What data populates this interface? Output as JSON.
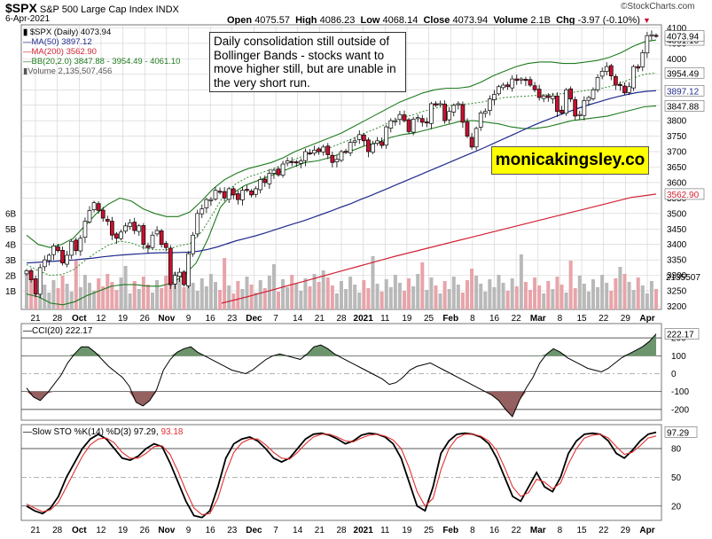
{
  "header": {
    "symbol": "$SPX",
    "name": "S&P 500 Large Cap Index",
    "exchange": "INDX",
    "date": "6-Apr-2021",
    "open_label": "Open",
    "open": "4075.57",
    "high_label": "High",
    "high": "4086.23",
    "low_label": "Low",
    "low": "4068.14",
    "close_label": "Close",
    "close": "4073.94",
    "volume_label": "Volume",
    "volume": "2.1B",
    "chg_label": "Chg",
    "chg": "-3.97 (-0.10%)",
    "source": "©StockCharts.com"
  },
  "legend": {
    "price": "$SPX (Daily) 4073.94",
    "ma50": "MA(50) 3897.12",
    "ma200": "MA(200) 3562.90",
    "bb": "BB(20,2.0) 3847.88 - 3954.49 - 4061.10",
    "volume": "Volume 2,135,507,456",
    "cci": "CCI(20) 222.17",
    "sto_main": "Slow STO %K(14) %D(3) 97.29,",
    "sto_d": "93.18"
  },
  "annotation": "Daily consolidation still outside of Bollinger Bands - stocks want to move higher still, but are unable in the very short run.",
  "watermark": "monicakingsley.co",
  "colors": {
    "up": "#ffffff",
    "down": "#c8102e",
    "candle_outline": "#000000",
    "ma50": "#1f2a8c",
    "ma200": "#d12233",
    "bb": "#1e7a1e",
    "bb_mid": "#2e8b2e",
    "volume_up": "#b9b9b9",
    "volume_down": "#e8a4aa",
    "cci_fill": "#5d8a5d",
    "cci_neg_fill": "#8a4f4f",
    "sto_k": "#000000",
    "sto_d": "#e03030",
    "grid": "#d0d0d0",
    "watermark_bg": "#ffff00"
  },
  "chart_data": [
    {
      "type": "candlestick",
      "title": "$SPX (Daily)",
      "x_labels": [
        "21",
        "28",
        "Oct",
        "12",
        "19",
        "26",
        "Nov",
        "9",
        "16",
        "23",
        "Dec",
        "7",
        "14",
        "21",
        "28",
        "2021",
        "11",
        "19",
        "25",
        "Feb",
        "8",
        "16",
        "22",
        "Mar",
        "8",
        "15",
        "22",
        "29",
        "Apr"
      ],
      "y_ticks": [
        3200,
        3250,
        3300,
        3350,
        3400,
        3450,
        3500,
        3550,
        3600,
        3650,
        3700,
        3750,
        3800,
        3850,
        3900,
        3950,
        4000,
        4050,
        4100
      ],
      "ylim": [
        3190,
        4110
      ],
      "volume_ticks": [
        "1B",
        "2B",
        "3B",
        "4B",
        "5B",
        "6B"
      ],
      "closes": [
        3315,
        3285,
        3240,
        3325,
        3350,
        3365,
        3395,
        3380,
        3340,
        3365,
        3410,
        3380,
        3420,
        3475,
        3510,
        3535,
        3510,
        3485,
        3475,
        3430,
        3420,
        3440,
        3460,
        3470,
        3445,
        3460,
        3400,
        3390,
        3430,
        3445,
        3400,
        3390,
        3270,
        3300,
        3310,
        3270,
        3370,
        3430,
        3500,
        3515,
        3545,
        3545,
        3575,
        3570,
        3550,
        3580,
        3560,
        3545,
        3575,
        3575,
        3560,
        3580,
        3610,
        3600,
        3630,
        3640,
        3625,
        3660,
        3670,
        3665,
        3665,
        3670,
        3700,
        3695,
        3705,
        3700,
        3715,
        3690,
        3665,
        3675,
        3700,
        3700,
        3730,
        3735,
        3755,
        3735,
        3700,
        3725,
        3735,
        3720,
        3780,
        3800,
        3800,
        3820,
        3800,
        3765,
        3805,
        3810,
        3795,
        3795,
        3855,
        3850,
        3855,
        3800,
        3830,
        3850,
        3855,
        3795,
        3750,
        3715,
        3775,
        3825,
        3830,
        3870,
        3885,
        3910,
        3915,
        3910,
        3935,
        3930,
        3935,
        3930,
        3915,
        3900,
        3875,
        3880,
        3875,
        3880,
        3830,
        3825,
        3900,
        3870,
        3815,
        3820,
        3865,
        3875,
        3900,
        3940,
        3960,
        3975,
        3945,
        3915,
        3915,
        3890,
        3910,
        3975,
        3970,
        4020,
        4075,
        4078,
        4074
      ],
      "ma50": [
        3340,
        3342,
        3344,
        3346,
        3348,
        3350,
        3353,
        3356,
        3360,
        3363,
        3366,
        3368,
        3370,
        3372,
        3373,
        3373,
        3374,
        3375,
        3378,
        3384,
        3392,
        3402,
        3412,
        3420,
        3428,
        3437,
        3447,
        3457,
        3467,
        3476,
        3487,
        3498,
        3509,
        3521,
        3532,
        3545,
        3557,
        3570,
        3583,
        3596,
        3609,
        3622,
        3635,
        3648,
        3661,
        3674,
        3687,
        3700,
        3713,
        3727,
        3741,
        3755,
        3769,
        3783,
        3796,
        3808,
        3820,
        3831,
        3842,
        3852,
        3861,
        3870,
        3878,
        3885,
        3891,
        3895,
        3897
      ],
      "ma200": [
        3210,
        3220,
        3230,
        3241,
        3252,
        3263,
        3274,
        3285,
        3296,
        3307,
        3318,
        3329,
        3340,
        3351,
        3362,
        3372,
        3382,
        3392,
        3402,
        3412,
        3422,
        3432,
        3442,
        3452,
        3462,
        3472,
        3482,
        3492,
        3502,
        3512,
        3522,
        3532,
        3542,
        3552,
        3557,
        3563
      ],
      "bb_upper": [
        3430,
        3400,
        3390,
        3400,
        3420,
        3460,
        3500,
        3530,
        3550,
        3540,
        3515,
        3500,
        3490,
        3490,
        3505,
        3540,
        3580,
        3610,
        3630,
        3645,
        3655,
        3665,
        3680,
        3700,
        3715,
        3730,
        3745,
        3760,
        3780,
        3800,
        3820,
        3840,
        3860,
        3875,
        3890,
        3900,
        3905,
        3905,
        3910,
        3925,
        3945,
        3960,
        3975,
        3985,
        3990,
        3990,
        3985,
        3985,
        3990,
        3995,
        4005,
        4020,
        4040,
        4055,
        4061
      ],
      "bb_lower": [
        3240,
        3230,
        3210,
        3205,
        3215,
        3235,
        3250,
        3265,
        3270,
        3270,
        3265,
        3265,
        3275,
        3300,
        3340,
        3420,
        3520,
        3565,
        3590,
        3605,
        3620,
        3635,
        3650,
        3665,
        3670,
        3680,
        3695,
        3705,
        3720,
        3730,
        3745,
        3755,
        3760,
        3770,
        3780,
        3790,
        3800,
        3800,
        3795,
        3790,
        3780,
        3775,
        3775,
        3780,
        3790,
        3800,
        3805,
        3810,
        3815,
        3825,
        3835,
        3845,
        3848
      ],
      "ma50_last": 3897.12,
      "ma200_last": 3562.9,
      "bb_upper_last": 4061.1,
      "bb_mid_last": 3954.49,
      "bb_lower_last": 3847.88,
      "last": 4073.94,
      "volume_last": 2135507
    },
    {
      "type": "line",
      "title": "CCI(20)",
      "y_ticks": [
        -200,
        -100,
        0,
        100,
        200
      ],
      "ylim": [
        -260,
        280
      ],
      "values": [
        -80,
        -130,
        -150,
        -110,
        -60,
        -10,
        60,
        110,
        150,
        150,
        120,
        80,
        40,
        10,
        -20,
        -70,
        -160,
        -180,
        -150,
        -90,
        20,
        80,
        120,
        140,
        150,
        120,
        100,
        80,
        60,
        40,
        20,
        10,
        0,
        20,
        50,
        80,
        100,
        110,
        100,
        90,
        80,
        110,
        150,
        160,
        140,
        110,
        90,
        70,
        50,
        30,
        10,
        -10,
        -30,
        -60,
        -50,
        -20,
        20,
        40,
        50,
        60,
        40,
        20,
        0,
        -20,
        -40,
        -60,
        -80,
        -100,
        -120,
        -150,
        -200,
        -240,
        -150,
        -80,
        -20,
        60,
        110,
        140,
        120,
        90,
        70,
        50,
        30,
        20,
        10,
        30,
        60,
        90,
        110,
        130,
        150,
        180,
        222
      ]
    },
    {
      "type": "line",
      "title": "Slow STO %K(14) %D(3)",
      "y_ticks": [
        20,
        50,
        80
      ],
      "ylim": [
        5,
        105
      ],
      "series": [
        {
          "name": "%K",
          "values": [
            20,
            15,
            12,
            18,
            30,
            50,
            65,
            80,
            90,
            95,
            90,
            80,
            70,
            68,
            72,
            80,
            85,
            82,
            65,
            45,
            25,
            10,
            8,
            15,
            40,
            70,
            85,
            90,
            92,
            88,
            80,
            70,
            66,
            70,
            80,
            90,
            95,
            96,
            94,
            90,
            85,
            88,
            94,
            96,
            95,
            92,
            85,
            70,
            45,
            20,
            15,
            40,
            75,
            88,
            95,
            96,
            95,
            92,
            85,
            70,
            50,
            30,
            25,
            40,
            55,
            40,
            35,
            50,
            75,
            88,
            95,
            96,
            95,
            88,
            75,
            70,
            78,
            88,
            95,
            97
          ]
        },
        {
          "name": "%D",
          "values": [
            22,
            18,
            14,
            16,
            24,
            40,
            56,
            72,
            84,
            90,
            91,
            86,
            76,
            70,
            70,
            75,
            82,
            83,
            74,
            56,
            36,
            18,
            11,
            12,
            28,
            55,
            76,
            86,
            90,
            90,
            84,
            76,
            70,
            69,
            76,
            85,
            92,
            95,
            95,
            92,
            88,
            87,
            91,
            94,
            95,
            93,
            89,
            80,
            60,
            35,
            20,
            28,
            58,
            80,
            91,
            95,
            95,
            93,
            88,
            78,
            60,
            40,
            30,
            34,
            48,
            45,
            38,
            44,
            64,
            80,
            91,
            94,
            95,
            91,
            82,
            74,
            76,
            83,
            91,
            93.18
          ]
        }
      ]
    }
  ]
}
